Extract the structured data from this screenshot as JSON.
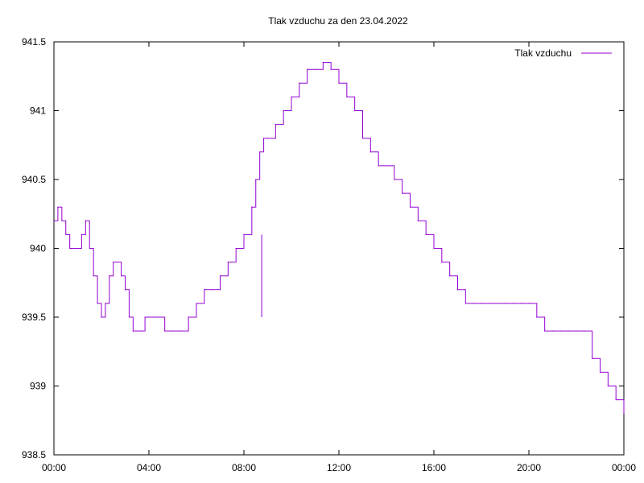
{
  "chart_data": {
    "type": "line",
    "title": "Tlak vzduchu za den 23.04.2022",
    "xlabel": "",
    "ylabel": "",
    "xlim": [
      "00:00",
      "24:00"
    ],
    "ylim": [
      938.5,
      941.5
    ],
    "x_ticks": [
      "00:00",
      "04:00",
      "08:00",
      "12:00",
      "16:00",
      "20:00",
      "00:00"
    ],
    "y_ticks": [
      "938.5",
      "939",
      "939.5",
      "940",
      "940.5",
      "941",
      "941.5"
    ],
    "grid": false,
    "legend_position": "top-right",
    "series": [
      {
        "name": "Tlak vzduchu",
        "color": "#9400d3",
        "points": [
          [
            "00:00",
            940.2
          ],
          [
            "00:10",
            940.3
          ],
          [
            "00:20",
            940.2
          ],
          [
            "00:30",
            940.1
          ],
          [
            "00:40",
            940.0
          ],
          [
            "00:50",
            940.0
          ],
          [
            "01:00",
            940.0
          ],
          [
            "01:10",
            940.1
          ],
          [
            "01:20",
            940.2
          ],
          [
            "01:30",
            940.0
          ],
          [
            "01:40",
            939.8
          ],
          [
            "01:50",
            939.6
          ],
          [
            "02:00",
            939.5
          ],
          [
            "02:10",
            939.6
          ],
          [
            "02:20",
            939.8
          ],
          [
            "02:30",
            939.9
          ],
          [
            "02:40",
            939.9
          ],
          [
            "02:50",
            939.8
          ],
          [
            "03:00",
            939.7
          ],
          [
            "03:10",
            939.5
          ],
          [
            "03:20",
            939.4
          ],
          [
            "03:30",
            939.4
          ],
          [
            "03:40",
            939.4
          ],
          [
            "03:50",
            939.5
          ],
          [
            "04:00",
            939.5
          ],
          [
            "04:20",
            939.5
          ],
          [
            "04:40",
            939.4
          ],
          [
            "05:00",
            939.4
          ],
          [
            "05:20",
            939.4
          ],
          [
            "05:40",
            939.5
          ],
          [
            "06:00",
            939.6
          ],
          [
            "06:20",
            939.7
          ],
          [
            "06:40",
            939.7
          ],
          [
            "07:00",
            939.8
          ],
          [
            "07:20",
            939.9
          ],
          [
            "07:40",
            940.0
          ],
          [
            "08:00",
            940.1
          ],
          [
            "08:20",
            940.3
          ],
          [
            "08:30",
            940.5
          ],
          [
            "08:40",
            940.7
          ],
          [
            "08:50",
            940.8
          ],
          [
            "09:00",
            940.8
          ],
          [
            "09:20",
            940.9
          ],
          [
            "09:40",
            941.0
          ],
          [
            "10:00",
            941.1
          ],
          [
            "10:20",
            941.2
          ],
          [
            "10:40",
            941.3
          ],
          [
            "11:00",
            941.3
          ],
          [
            "11:20",
            941.35
          ],
          [
            "11:40",
            941.3
          ],
          [
            "12:00",
            941.2
          ],
          [
            "12:20",
            941.1
          ],
          [
            "12:40",
            941.0
          ],
          [
            "13:00",
            940.8
          ],
          [
            "13:20",
            940.7
          ],
          [
            "13:40",
            940.6
          ],
          [
            "14:00",
            940.6
          ],
          [
            "14:20",
            940.5
          ],
          [
            "14:40",
            940.4
          ],
          [
            "15:00",
            940.3
          ],
          [
            "15:20",
            940.2
          ],
          [
            "15:40",
            940.1
          ],
          [
            "16:00",
            940.0
          ],
          [
            "16:20",
            939.9
          ],
          [
            "16:40",
            939.8
          ],
          [
            "17:00",
            939.7
          ],
          [
            "17:20",
            939.6
          ],
          [
            "17:40",
            939.6
          ],
          [
            "18:00",
            939.6
          ],
          [
            "18:30",
            939.6
          ],
          [
            "19:00",
            939.6
          ],
          [
            "19:20",
            939.6
          ],
          [
            "19:40",
            939.6
          ],
          [
            "20:00",
            939.6
          ],
          [
            "20:20",
            939.5
          ],
          [
            "20:40",
            939.4
          ],
          [
            "21:00",
            939.4
          ],
          [
            "21:20",
            939.4
          ],
          [
            "21:40",
            939.4
          ],
          [
            "22:00",
            939.4
          ],
          [
            "22:20",
            939.4
          ],
          [
            "22:40",
            939.2
          ],
          [
            "23:00",
            939.1
          ],
          [
            "23:20",
            939.0
          ],
          [
            "23:40",
            938.9
          ],
          [
            "24:00",
            938.8
          ]
        ],
        "spikes": [
          {
            "x": "08:45",
            "from": 940.1,
            "to": 939.5
          }
        ]
      }
    ]
  }
}
